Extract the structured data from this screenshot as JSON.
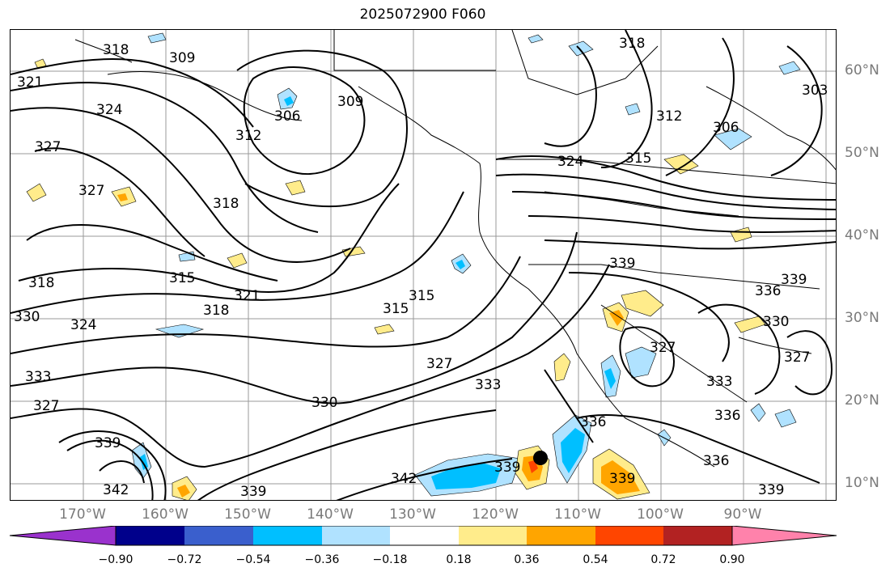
{
  "title": "2025072900 F060",
  "lat_labels": [
    "60°N",
    "50°N",
    "40°N",
    "30°N",
    "20°N",
    "10°N"
  ],
  "lon_labels": [
    "170°W",
    "160°W",
    "150°W",
    "140°W",
    "130°W",
    "120°W",
    "110°W",
    "100°W",
    "90°W"
  ],
  "contour_labels": [
    "318",
    "309",
    "321",
    "324",
    "327",
    "306",
    "312",
    "309",
    "318",
    "327",
    "318",
    "315",
    "321",
    "318",
    "330",
    "324",
    "333",
    "327",
    "315",
    "315",
    "327",
    "333",
    "330",
    "339",
    "342",
    "339",
    "342",
    "339",
    "336",
    "324",
    "315",
    "318",
    "312",
    "306",
    "303",
    "339",
    "336",
    "339",
    "330",
    "327",
    "327",
    "333",
    "336",
    "336",
    "339",
    "339"
  ],
  "colorbar": {
    "colors": [
      "#9a32cd",
      "#00008b",
      "#3a5fcd",
      "#00bfff",
      "#b0e2ff",
      "#ffffff",
      "#ffec8b",
      "#ffa500",
      "#ff4500",
      "#b22222",
      "#ff82ab"
    ],
    "tick_labels": [
      "−0.90",
      "−0.72",
      "−0.54",
      "−0.36",
      "−0.18",
      "0.18",
      "0.36",
      "0.54",
      "0.72",
      "0.90"
    ]
  },
  "marker": "storm-center-dot"
}
